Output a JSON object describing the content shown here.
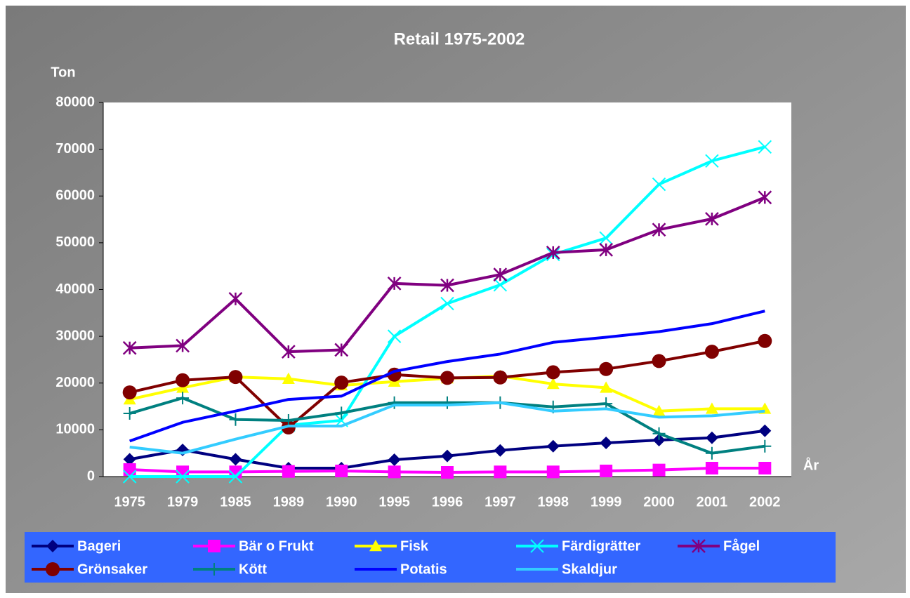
{
  "chart_data": {
    "type": "line",
    "title": "Retail 1975-2002",
    "y_label": "Ton",
    "x_label": "År",
    "categories": [
      "1975",
      "1979",
      "1985",
      "1989",
      "1990",
      "1995",
      "1996",
      "1997",
      "1998",
      "1999",
      "2000",
      "2001",
      "2002"
    ],
    "ylim": [
      0,
      80000
    ],
    "yticks": [
      0,
      10000,
      20000,
      30000,
      40000,
      50000,
      60000,
      70000,
      80000
    ],
    "series": [
      {
        "name": "Bageri",
        "color": "#000080",
        "marker": "diamond",
        "values": [
          3700,
          5700,
          3700,
          1800,
          1800,
          3600,
          4400,
          5600,
          6500,
          7200,
          7800,
          8300,
          9800
        ]
      },
      {
        "name": "Bär o Frukt",
        "color": "#ff00ff",
        "marker": "square",
        "values": [
          1500,
          1000,
          1000,
          1100,
          1200,
          1000,
          900,
          1000,
          1000,
          1200,
          1400,
          1800,
          1800
        ]
      },
      {
        "name": "Fisk",
        "color": "#ffff00",
        "marker": "triangle",
        "values": [
          16500,
          19000,
          21300,
          20900,
          19500,
          20300,
          21000,
          21500,
          19800,
          19000,
          14000,
          14500,
          14500
        ]
      },
      {
        "name": "Färdigrätter",
        "color": "#00ffff",
        "marker": "x",
        "values": [
          0,
          0,
          0,
          11000,
          12000,
          30000,
          37000,
          41000,
          47500,
          51000,
          62500,
          67500,
          70500
        ]
      },
      {
        "name": "Fågel",
        "color": "#800080",
        "marker": "star",
        "values": [
          27500,
          28000,
          38000,
          26700,
          27100,
          41300,
          40900,
          43200,
          47900,
          48500,
          52800,
          55100,
          59700
        ]
      },
      {
        "name": "Grönsaker",
        "color": "#800000",
        "marker": "circle",
        "values": [
          18000,
          20600,
          21300,
          10500,
          20100,
          21800,
          21100,
          21200,
          22300,
          23000,
          24700,
          26700,
          29000
        ]
      },
      {
        "name": "Kött",
        "color": "#008080",
        "marker": "plus",
        "values": [
          13500,
          16800,
          12200,
          12000,
          13600,
          15800,
          15800,
          15800,
          14900,
          15600,
          9200,
          5000,
          6500
        ]
      },
      {
        "name": "Potatis",
        "color": "#0000ff",
        "marker": "none",
        "values": [
          7600,
          11600,
          14000,
          16500,
          17200,
          22500,
          24600,
          26200,
          28700,
          29800,
          31000,
          32700,
          35400
        ]
      },
      {
        "name": "Skaldjur",
        "color": "#33ccff",
        "marker": "none",
        "values": [
          6300,
          5000,
          8000,
          10800,
          10800,
          15300,
          15300,
          15800,
          14000,
          14500,
          12700,
          13000,
          14000
        ]
      }
    ]
  }
}
